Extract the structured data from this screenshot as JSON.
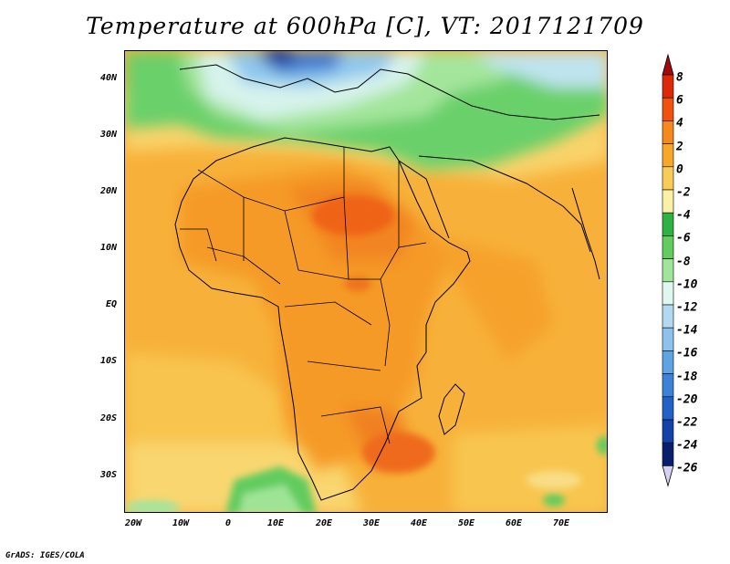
{
  "title": "Temperature at 600hPa [C], VT: 2017121709",
  "credit": "GrADS: IGES/COLA",
  "map": {
    "region": "Africa and surrounding oceans",
    "lat_labels": [
      "40N",
      "30N",
      "20N",
      "10N",
      "EQ",
      "10S",
      "20S",
      "30S"
    ],
    "lon_labels": [
      "20W",
      "10W",
      "0",
      "10E",
      "20E",
      "30E",
      "40E",
      "50E",
      "60E",
      "70E"
    ]
  },
  "colorbar": {
    "labels": [
      "8",
      "6",
      "4",
      "2",
      "0",
      "-2",
      "-4",
      "-6",
      "-8",
      "-10",
      "-12",
      "-14",
      "-16",
      "-18",
      "-20",
      "-22",
      "-24",
      "-26"
    ],
    "colors": [
      "#a10b0b",
      "#dc2a08",
      "#f0520f",
      "#f5891b",
      "#f6a928",
      "#f8cc55",
      "#fbf0a5",
      "#2fb143",
      "#62cc5e",
      "#a1e59a",
      "#dff7ee",
      "#b3d9f1",
      "#8cc2ec",
      "#5ea4e2",
      "#3c82d6",
      "#2362c5",
      "#1443a7",
      "#0a1f6b",
      "#d6d0f5"
    ]
  },
  "colors": {
    "ocean_base": "#f7ae34",
    "land_warm": "#f49523",
    "hot_core": "#ef6b18"
  }
}
